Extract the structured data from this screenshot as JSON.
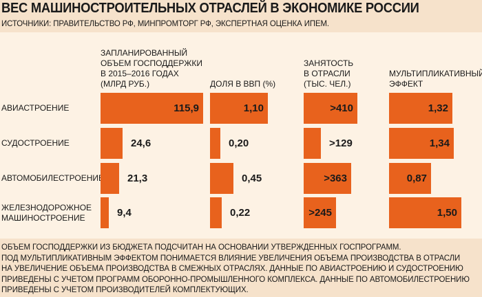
{
  "title": "ВЕС МАШИНОСТРОИТЕЛЬНЫХ ОТРАСЛЕЙ В ЭКОНОМИКЕ РОССИИ",
  "subtitle": "ИСТОЧНИКИ: ПРАВИТЕЛЬСТВО РФ, МИНПРОМТОРГ РФ, ЭКСПЕРТНАЯ ОЦЕНКА ИПЕМ.",
  "colors": {
    "bar": "#e8621d",
    "panel": "#fdf2e4",
    "background": "#f6e2cb"
  },
  "chart_data": {
    "type": "bar",
    "categories": [
      "АВИАСТРОЕНИЕ",
      "СУДОСТРОЕНИЕ",
      "АВТОМОБИЛЕСТРОЕНИЕ",
      "ЖЕЛЕЗНОДОРОЖНОЕ МАШИНОСТРОЕНИЕ"
    ],
    "category_lines": [
      [
        "АВИАСТРОЕНИЕ"
      ],
      [
        "СУДОСТРОЕНИЕ"
      ],
      [
        "АВТОМОБИЛЕСТРОЕНИЕ"
      ],
      [
        "ЖЕЛЕЗНОДОРОЖНОЕ",
        "МАШИНОСТРОЕНИЕ"
      ]
    ],
    "series": [
      {
        "name": "ЗАПЛАНИРОВАННЫЙ ОБЪЕМ ГОСПОДДЕРЖКИ В 2015–2016 ГОДАХ (МЛРД РУБ.)",
        "header_lines": [
          "ЗАПЛАНИРОВАННЫЙ",
          "ОБЪЕМ ГОСПОДДЕРЖКИ",
          "В 2015–2016 ГОДАХ",
          "(МЛРД РУБ.)"
        ],
        "values": [
          115.9,
          24.6,
          21.3,
          9.4
        ],
        "labels": [
          "115,9",
          "24,6",
          "21,3",
          "9,4"
        ]
      },
      {
        "name": "ДОЛЯ В ВВП (%)",
        "header_lines": [
          "ДОЛЯ В ВВП (%)"
        ],
        "values": [
          1.1,
          0.2,
          0.45,
          0.22
        ],
        "labels": [
          "1,10",
          "0,20",
          "0,45",
          "0,22"
        ]
      },
      {
        "name": "ЗАНЯТОСТЬ В ОТРАСЛИ (ТЫС. ЧЕЛ.)",
        "header_lines": [
          "ЗАНЯТОСТЬ",
          "В ОТРАСЛИ",
          "(ТЫС. ЧЕЛ.)"
        ],
        "values": [
          410,
          129,
          363,
          245
        ],
        "labels": [
          ">410",
          ">129",
          ">363",
          ">245"
        ]
      },
      {
        "name": "МУЛЬТИПЛИКАТИВНЫЙ ЭФФЕКТ",
        "header_lines": [
          "МУЛЬТИПЛИКАТИВНЫЙ",
          "ЭФФЕКТ"
        ],
        "values": [
          1.32,
          1.34,
          0.87,
          1.5
        ],
        "labels": [
          "1,32",
          "1,34",
          "0,87",
          "1,50"
        ]
      }
    ]
  },
  "notes": [
    "ОБЪЕМ ГОСПОДДЕРЖКИ ИЗ БЮДЖЕТА ПОДСЧИТАН НА ОСНОВАНИИ УТВЕРЖДЕННЫХ ГОСПРОГРАММ.",
    "ПОД МУЛЬТИПЛИКАТИВНЫМ ЭФФЕКТОМ ПОНИМАЕТСЯ ВЛИЯНИЕ УВЕЛИЧЕНИЯ ОБЪЕМА ПРОИЗВОДСТВА В ОТРАСЛИ",
    "НА УВЕЛИЧЕНИЕ ОБЪЕМА ПРОИЗВОДСТВА В СМЕЖНЫХ ОТРАСЛЯХ. ДАННЫЕ ПО АВИАСТРОЕНИЮ И СУДОСТРОЕНИЮ",
    "ПРИВЕДЕНЫ С УЧЕТОМ ПРОГРАММ ОБОРОННО-ПРОМЫШЛЕННОГО КОМПЛЕКСА. ДАННЫЕ ПО АВТОМОБИЛЕСТРОЕНИЮ",
    "ПРИВЕДЕНЫ С УЧЕТОМ ПРОИЗВОДИТЕЛЕЙ КОМПЛЕКТУЮЩИХ."
  ]
}
